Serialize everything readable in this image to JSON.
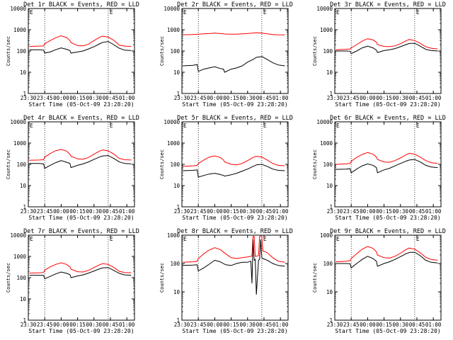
{
  "chart_data": [
    {
      "type": "line",
      "title": "Det 1r BLACK = Events, RED = LLD",
      "xlabel": "Start Time (05-Oct-09 23:28:20)",
      "ylabel": "Counts/sec",
      "yscale": "log",
      "ylim": [
        1,
        10000
      ],
      "xlim": [
        "23:30",
        "01:07"
      ],
      "x_ticks": [
        "23:30",
        "23:45",
        "00:00",
        "00:15",
        "00:30",
        "00:45",
        "01:00"
      ],
      "y_ticks": [
        "1",
        "10",
        "100",
        "1000",
        "10000"
      ],
      "marker_lines": [
        "23:45",
        "00:43"
      ],
      "flag_label": "E",
      "x": [
        "23:31",
        "23:40",
        "23:44",
        "23:45",
        "23:50",
        "23:55",
        "00:00",
        "00:05",
        "00:08",
        "00:09",
        "00:15",
        "00:20",
        "00:25",
        "00:30",
        "00:35",
        "00:38",
        "00:43",
        "00:48",
        "00:53",
        "00:58",
        "01:04"
      ],
      "series": [
        {
          "name": "Events",
          "color": "#000000",
          "values": [
            115,
            115,
            110,
            80,
            90,
            115,
            140,
            120,
            105,
            80,
            90,
            100,
            125,
            160,
            215,
            255,
            280,
            200,
            135,
            110,
            105
          ]
        },
        {
          "name": "LLD",
          "color": "#ff0000",
          "values": [
            165,
            170,
            172,
            220,
            310,
            420,
            520,
            430,
            310,
            250,
            180,
            175,
            210,
            310,
            440,
            500,
            450,
            320,
            190,
            170,
            165
          ]
        }
      ]
    },
    {
      "type": "line",
      "title": "Det 2r BLACK = Events, RED = LLD",
      "xlabel": "Start Time (05-Oct-09 23:28:20)",
      "ylabel": "Counts/sec",
      "yscale": "log",
      "ylim": [
        1,
        10000
      ],
      "xlim": [
        "23:30",
        "01:07"
      ],
      "x_ticks": [
        "23:30",
        "23:45",
        "00:00",
        "00:15",
        "00:30",
        "00:45",
        "01:00"
      ],
      "y_ticks": [
        "1",
        "10",
        "100",
        "1000",
        "10000"
      ],
      "marker_lines": [
        "23:45",
        "00:43"
      ],
      "flag_label": "E",
      "x": [
        "23:31",
        "23:40",
        "23:44",
        "23:45",
        "23:50",
        "23:55",
        "00:00",
        "00:05",
        "00:08",
        "00:09",
        "00:15",
        "00:20",
        "00:25",
        "00:30",
        "00:35",
        "00:38",
        "00:43",
        "00:48",
        "00:53",
        "00:58",
        "01:04"
      ],
      "series": [
        {
          "name": "Events",
          "color": "#000000",
          "values": [
            20,
            21,
            23,
            11,
            14,
            16,
            18,
            15,
            14,
            10,
            14,
            16,
            20,
            30,
            40,
            50,
            55,
            40,
            28,
            22,
            20
          ]
        },
        {
          "name": "LLD",
          "color": "#ff0000",
          "values": [
            580,
            600,
            610,
            620,
            640,
            660,
            690,
            660,
            640,
            630,
            620,
            620,
            640,
            660,
            700,
            720,
            690,
            640,
            600,
            580,
            570
          ]
        }
      ]
    },
    {
      "type": "line",
      "title": "Det 3r BLACK = Events, RED = LLD",
      "xlabel": "Start Time (05-Oct-09 23:28:20)",
      "ylabel": "Counts/sec",
      "yscale": "log",
      "ylim": [
        1,
        10000
      ],
      "xlim": [
        "23:30",
        "01:07"
      ],
      "x_ticks": [
        "23:30",
        "23:45",
        "00:00",
        "00:15",
        "00:30",
        "00:45",
        "01:00"
      ],
      "y_ticks": [
        "1",
        "10",
        "100",
        "1000",
        "10000"
      ],
      "marker_lines": [
        "23:45",
        "00:43"
      ],
      "flag_label": "E",
      "x": [
        "23:31",
        "23:40",
        "23:44",
        "23:45",
        "23:50",
        "23:55",
        "00:00",
        "00:05",
        "00:08",
        "00:09",
        "00:15",
        "00:20",
        "00:25",
        "00:30",
        "00:35",
        "00:38",
        "00:43",
        "00:48",
        "00:53",
        "00:58",
        "01:04"
      ],
      "series": [
        {
          "name": "Events",
          "color": "#000000",
          "values": [
            100,
            100,
            98,
            75,
            100,
            140,
            170,
            140,
            110,
            85,
            105,
            115,
            130,
            160,
            200,
            225,
            230,
            170,
            120,
            105,
            100
          ]
        },
        {
          "name": "LLD",
          "color": "#ff0000",
          "values": [
            115,
            120,
            125,
            140,
            200,
            290,
            380,
            330,
            260,
            200,
            165,
            160,
            175,
            220,
            300,
            350,
            310,
            230,
            160,
            135,
            125
          ]
        }
      ]
    },
    {
      "type": "line",
      "title": "Det 4r BLACK = Events, RED = LLD",
      "xlabel": "Start Time (05-Oct-09 23:28:20)",
      "ylabel": "Counts/sec",
      "yscale": "log",
      "ylim": [
        1,
        10000
      ],
      "xlim": [
        "23:30",
        "01:07"
      ],
      "x_ticks": [
        "23:30",
        "23:45",
        "00:00",
        "00:15",
        "00:30",
        "00:45",
        "01:00"
      ],
      "y_ticks": [
        "1",
        "10",
        "100",
        "1000",
        "10000"
      ],
      "marker_lines": [
        "23:45",
        "00:43"
      ],
      "flag_label": "E",
      "x": [
        "23:31",
        "23:40",
        "23:44",
        "23:45",
        "23:50",
        "23:55",
        "00:00",
        "00:05",
        "00:08",
        "00:09",
        "00:15",
        "00:20",
        "00:25",
        "00:30",
        "00:35",
        "00:38",
        "00:43",
        "00:48",
        "00:53",
        "00:58",
        "01:04"
      ],
      "series": [
        {
          "name": "Events",
          "color": "#000000",
          "values": [
            110,
            110,
            105,
            65,
            90,
            120,
            150,
            125,
            110,
            70,
            90,
            105,
            130,
            170,
            220,
            250,
            260,
            190,
            130,
            110,
            105
          ]
        },
        {
          "name": "LLD",
          "color": "#ff0000",
          "values": [
            155,
            160,
            165,
            220,
            320,
            440,
            500,
            420,
            300,
            240,
            180,
            175,
            210,
            300,
            420,
            480,
            430,
            310,
            190,
            165,
            160
          ]
        }
      ]
    },
    {
      "type": "line",
      "title": "Det 5r BLACK = Events, RED = LLD",
      "xlabel": "Start Time (05-Oct-09 23:28:20)",
      "ylabel": "Counts/sec",
      "yscale": "log",
      "ylim": [
        1,
        10000
      ],
      "xlim": [
        "23:30",
        "01:07"
      ],
      "x_ticks": [
        "23:30",
        "23:45",
        "00:00",
        "00:15",
        "00:30",
        "00:45",
        "01:00"
      ],
      "y_ticks": [
        "1",
        "10",
        "100",
        "1000",
        "10000"
      ],
      "marker_lines": [
        "23:45",
        "00:43"
      ],
      "flag_label": "E",
      "x": [
        "23:31",
        "23:40",
        "23:44",
        "23:45",
        "23:50",
        "23:55",
        "00:00",
        "00:05",
        "00:08",
        "00:09",
        "00:15",
        "00:20",
        "00:25",
        "00:30",
        "00:35",
        "00:38",
        "00:43",
        "00:48",
        "00:53",
        "00:58",
        "01:04"
      ],
      "series": [
        {
          "name": "Events",
          "color": "#000000",
          "values": [
            50,
            52,
            55,
            25,
            30,
            35,
            38,
            33,
            30,
            28,
            32,
            38,
            48,
            60,
            80,
            95,
            100,
            80,
            60,
            52,
            50
          ]
        },
        {
          "name": "LLD",
          "color": "#ff0000",
          "values": [
            80,
            85,
            90,
            110,
            160,
            220,
            250,
            210,
            160,
            130,
            100,
            95,
            110,
            150,
            210,
            240,
            220,
            160,
            110,
            90,
            85
          ]
        }
      ]
    },
    {
      "type": "line",
      "title": "Det 6r BLACK = Events, RED = LLD",
      "xlabel": "Start Time (05-Oct-09 23:28:20)",
      "ylabel": "Counts/sec",
      "yscale": "log",
      "ylim": [
        1,
        10000
      ],
      "xlim": [
        "23:30",
        "01:07"
      ],
      "x_ticks": [
        "23:30",
        "23:45",
        "00:00",
        "00:15",
        "00:30",
        "00:45",
        "01:00"
      ],
      "y_ticks": [
        "1",
        "10",
        "100",
        "1000",
        "10000"
      ],
      "marker_lines": [
        "23:45",
        "00:43"
      ],
      "flag_label": "E",
      "x": [
        "23:31",
        "23:40",
        "23:44",
        "23:45",
        "23:50",
        "23:55",
        "00:00",
        "00:05",
        "00:08",
        "00:09",
        "00:15",
        "00:20",
        "00:25",
        "00:30",
        "00:35",
        "00:38",
        "00:43",
        "00:48",
        "00:53",
        "00:58",
        "01:04"
      ],
      "series": [
        {
          "name": "Events",
          "color": "#000000",
          "values": [
            58,
            60,
            62,
            40,
            60,
            85,
            105,
            90,
            70,
            40,
            55,
            65,
            85,
            110,
            140,
            160,
            170,
            130,
            90,
            75,
            70
          ]
        },
        {
          "name": "LLD",
          "color": "#ff0000",
          "values": [
            100,
            105,
            110,
            140,
            210,
            290,
            360,
            300,
            220,
            170,
            130,
            125,
            150,
            200,
            280,
            330,
            300,
            220,
            150,
            120,
            110
          ]
        }
      ]
    },
    {
      "type": "line",
      "title": "Det 7r BLACK = Events, RED = LLD",
      "xlabel": "Start Time (05-Oct-09 23:28:20)",
      "ylabel": "Counts/sec",
      "yscale": "log",
      "ylim": [
        1,
        10000
      ],
      "xlim": [
        "23:30",
        "01:07"
      ],
      "x_ticks": [
        "23:30",
        "23:45",
        "00:00",
        "00:15",
        "00:30",
        "00:45",
        "01:00"
      ],
      "y_ticks": [
        "1",
        "10",
        "100",
        "1000",
        "10000"
      ],
      "marker_lines": [
        "23:45",
        "00:43"
      ],
      "flag_label": "E",
      "x": [
        "23:31",
        "23:40",
        "23:44",
        "23:45",
        "23:50",
        "23:55",
        "00:00",
        "00:05",
        "00:08",
        "00:09",
        "00:15",
        "00:20",
        "00:25",
        "00:30",
        "00:35",
        "00:38",
        "00:43",
        "00:48",
        "00:53",
        "00:58",
        "01:04"
      ],
      "series": [
        {
          "name": "Events",
          "color": "#000000",
          "values": [
            130,
            130,
            128,
            90,
            115,
            150,
            185,
            160,
            140,
            100,
            120,
            135,
            165,
            205,
            260,
            290,
            300,
            220,
            160,
            135,
            130
          ]
        },
        {
          "name": "LLD",
          "color": "#ff0000",
          "values": [
            165,
            170,
            175,
            225,
            320,
            420,
            500,
            420,
            320,
            250,
            190,
            185,
            220,
            300,
            400,
            460,
            420,
            310,
            200,
            175,
            170
          ]
        }
      ]
    },
    {
      "type": "line",
      "title": "Det 8r BLACK = Events, RED = LLD",
      "xlabel": "Start Time (05-Oct-09 23:28:20)",
      "ylabel": "Counts/sec",
      "yscale": "log",
      "ylim": [
        1,
        1000
      ],
      "xlim": [
        "23:30",
        "01:07"
      ],
      "x_ticks": [
        "23:30",
        "23:45",
        "00:00",
        "00:15",
        "00:30",
        "00:45",
        "01:00"
      ],
      "y_ticks": [
        "1",
        "10",
        "100",
        "1000"
      ],
      "marker_lines": [
        "23:45",
        "00:43"
      ],
      "flag_label": "E",
      "x": [
        "23:31",
        "23:40",
        "23:44",
        "23:45",
        "23:50",
        "23:55",
        "00:00",
        "00:05",
        "00:10",
        "00:15",
        "00:20",
        "00:25",
        "00:30",
        "00:33",
        "00:34",
        "00:35",
        "00:36",
        "00:37",
        "00:38",
        "00:40",
        "00:41",
        "00:42",
        "00:43",
        "00:44",
        "00:48",
        "00:53",
        "00:58",
        "01:04"
      ],
      "series": [
        {
          "name": "Events",
          "color": "#000000",
          "values": [
            85,
            88,
            90,
            55,
            70,
            95,
            130,
            115,
            90,
            85,
            100,
            110,
            110,
            120,
            20,
            700,
            130,
            140,
            8,
            130,
            140,
            700,
            160,
            150,
            130,
            100,
            85,
            80
          ]
        },
        {
          "name": "LLD",
          "color": "#ff0000",
          "values": [
            110,
            115,
            120,
            150,
            220,
            300,
            360,
            310,
            220,
            160,
            150,
            160,
            170,
            180,
            180,
            900,
            900,
            180,
            180,
            190,
            900,
            900,
            900,
            280,
            240,
            160,
            120,
            110
          ]
        }
      ]
    },
    {
      "type": "line",
      "title": "Det 9r BLACK = Events, RED = LLD",
      "xlabel": "Start Time (05-Oct-09 23:28:20)",
      "ylabel": "Counts/sec",
      "yscale": "log",
      "ylim": [
        1,
        1000
      ],
      "xlim": [
        "23:30",
        "01:07"
      ],
      "x_ticks": [
        "23:30",
        "23:45",
        "00:00",
        "00:15",
        "00:30",
        "00:45",
        "01:00"
      ],
      "y_ticks": [
        "1",
        "10",
        "100",
        "1000"
      ],
      "marker_lines": [
        "23:45",
        "00:43"
      ],
      "flag_label": "E",
      "x": [
        "23:31",
        "23:40",
        "23:44",
        "23:45",
        "23:50",
        "23:55",
        "00:00",
        "00:05",
        "00:08",
        "00:09",
        "00:15",
        "00:20",
        "00:25",
        "00:30",
        "00:35",
        "00:38",
        "00:43",
        "00:48",
        "00:53",
        "00:58",
        "01:04"
      ],
      "series": [
        {
          "name": "Events",
          "color": "#000000",
          "values": [
            100,
            100,
            98,
            70,
            100,
            140,
            180,
            150,
            120,
            80,
            100,
            115,
            140,
            175,
            220,
            245,
            250,
            190,
            130,
            110,
            105
          ]
        },
        {
          "name": "LLD",
          "color": "#ff0000",
          "values": [
            115,
            120,
            125,
            150,
            220,
            320,
            400,
            340,
            260,
            200,
            160,
            155,
            180,
            230,
            310,
            350,
            320,
            240,
            165,
            140,
            130
          ]
        }
      ]
    }
  ]
}
